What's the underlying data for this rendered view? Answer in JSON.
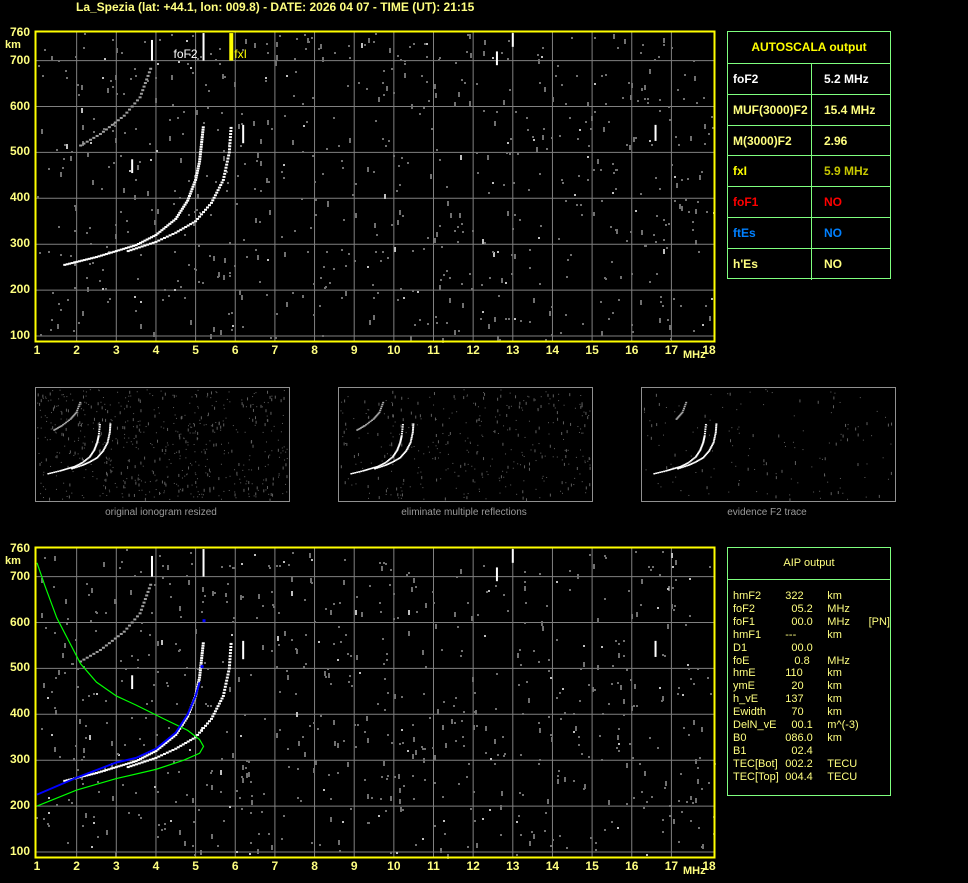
{
  "title": "La_Spezia (lat: +44.1, lon: 009.8) - DATE: 2026 04 07 - TIME (UT): 21:15",
  "colors": {
    "axis": "#ffff00",
    "grid": "#808080",
    "label": "#ffff80",
    "table_border": "#7fff7f",
    "foF1": "#ff0000",
    "ftEs": "#0080ff",
    "profile": "#00ff00",
    "trace_fit": "#0000ff"
  },
  "chart_data": [
    {
      "type": "scatter",
      "name": "ionogram",
      "xlabel": "MHz",
      "ylabel": "km",
      "xlim": [
        1,
        18
      ],
      "ylim": [
        100,
        760
      ],
      "x_ticks": [
        "1",
        "2",
        "3",
        "4",
        "5",
        "6",
        "7",
        "8",
        "9",
        "10",
        "11",
        "12",
        "13",
        "14",
        "15",
        "16",
        "17",
        "18"
      ],
      "y_ticks": [
        "760",
        "700",
        "600",
        "500",
        "400",
        "300",
        "200",
        "100"
      ],
      "grid": true,
      "annotations": [
        {
          "label": "foF2",
          "x": 5.2
        },
        {
          "label": "fxI",
          "x": 5.9
        }
      ],
      "traces": {
        "o_trace": [
          [
            1.7,
            255
          ],
          [
            2.5,
            272
          ],
          [
            3.0,
            285
          ],
          [
            3.5,
            298
          ],
          [
            4.0,
            320
          ],
          [
            4.5,
            355
          ],
          [
            4.8,
            395
          ],
          [
            5.0,
            440
          ],
          [
            5.1,
            480
          ],
          [
            5.2,
            560
          ]
        ],
        "x_trace": [
          [
            3.3,
            285
          ],
          [
            4.0,
            305
          ],
          [
            4.5,
            325
          ],
          [
            5.0,
            350
          ],
          [
            5.4,
            390
          ],
          [
            5.7,
            440
          ],
          [
            5.85,
            500
          ],
          [
            5.9,
            560
          ]
        ],
        "second_hop": [
          [
            2.1,
            515
          ],
          [
            2.6,
            540
          ],
          [
            3.2,
            580
          ],
          [
            3.6,
            620
          ],
          [
            3.9,
            690
          ]
        ]
      }
    },
    {
      "type": "line",
      "name": "aip",
      "xlabel": "MHz",
      "ylabel": "km",
      "xlim": [
        1,
        18
      ],
      "ylim": [
        100,
        760
      ],
      "x_ticks": [
        "1",
        "2",
        "3",
        "4",
        "5",
        "6",
        "7",
        "8",
        "9",
        "10",
        "11",
        "12",
        "13",
        "14",
        "15",
        "16",
        "17",
        "18"
      ],
      "y_ticks": [
        "760",
        "700",
        "600",
        "500",
        "400",
        "300",
        "200",
        "100"
      ],
      "grid": true,
      "series": [
        {
          "color": "#00ff00",
          "points": [
            [
              1,
              200
            ],
            [
              2,
              235
            ],
            [
              3,
              260
            ],
            [
              4,
              280
            ],
            [
              4.7,
              300
            ],
            [
              5.1,
              315
            ],
            [
              5.2,
              330
            ],
            [
              5.1,
              345
            ],
            [
              4.8,
              365
            ],
            [
              4.2,
              390
            ],
            [
              3.5,
              420
            ],
            [
              3,
              440
            ],
            [
              2.5,
              470
            ],
            [
              2.1,
              510
            ],
            [
              1.8,
              560
            ],
            [
              1.5,
              610
            ],
            [
              1.2,
              680
            ],
            [
              1,
              730
            ]
          ]
        },
        {
          "color": "#0000ff",
          "points": [
            [
              1,
              225
            ],
            [
              2,
              262
            ],
            [
              3,
              295
            ],
            [
              3.5,
              305
            ],
            [
              4,
              325
            ],
            [
              4.5,
              360
            ],
            [
              4.8,
              400
            ],
            [
              5.0,
              440
            ],
            [
              5.1,
              470
            ]
          ]
        }
      ]
    }
  ],
  "axis": {
    "y_unit": "km",
    "x_unit": "MHz"
  },
  "thumbnails": [
    {
      "caption": "original ionogram resized"
    },
    {
      "caption": "eliminate multiple reflections"
    },
    {
      "caption": "evidence F2 trace"
    }
  ],
  "autoscala": {
    "title": "AUTOSCALA output",
    "rows": [
      {
        "key": "foF2",
        "value": "5.2 MHz",
        "key_color": "#ffffff",
        "value_color": "#ffffff"
      },
      {
        "key": "MUF(3000)F2",
        "value": "15.4 MHz",
        "key_color": "#ffff80",
        "value_color": "#ffff80"
      },
      {
        "key": "M(3000)F2",
        "value": "2.96",
        "key_color": "#ffff80",
        "value_color": "#ffff80"
      },
      {
        "key": "fxI",
        "value": "5.9 MHz",
        "key_color": "#ffff00",
        "value_color": "#c8c800"
      },
      {
        "key": "foF1",
        "value": "NO",
        "key_color": "#ff0000",
        "value_color": "#ff0000"
      },
      {
        "key": "ftEs",
        "value": "NO",
        "key_color": "#0080ff",
        "value_color": "#0080ff"
      },
      {
        "key": "h'Es",
        "value": "NO",
        "key_color": "#ffff80",
        "value_color": "#ffff80"
      }
    ]
  },
  "aip": {
    "title": "AIP output",
    "rows": [
      {
        "key": "hmF2",
        "value": "322",
        "unit": "km",
        "extra": ""
      },
      {
        "key": "foF2",
        "value": "  05.2",
        "unit": "MHz",
        "extra": ""
      },
      {
        "key": "foF1",
        "value": "  00.0",
        "unit": "MHz",
        "extra": "[PN]"
      },
      {
        "key": "hmF1",
        "value": "---",
        "unit": "km",
        "extra": ""
      },
      {
        "key": "D1",
        "value": "  00.0",
        "unit": "",
        "extra": ""
      },
      {
        "key": "foE",
        "value": "   0.8",
        "unit": "MHz",
        "extra": ""
      },
      {
        "key": "hmE",
        "value": "110",
        "unit": "km",
        "extra": ""
      },
      {
        "key": "ymE",
        "value": "  20",
        "unit": "km",
        "extra": ""
      },
      {
        "key": "h_vE",
        "value": "137",
        "unit": "km",
        "extra": ""
      },
      {
        "key": "Ewidth",
        "value": "  70",
        "unit": "km",
        "extra": ""
      },
      {
        "key": "DelN_vE",
        "value": "  00.1",
        "unit": "m^(-3)",
        "extra": ""
      },
      {
        "key": "B0",
        "value": "086.0",
        "unit": "km",
        "extra": ""
      },
      {
        "key": "B1",
        "value": "  02.4",
        "unit": "",
        "extra": ""
      },
      {
        "key": "TEC[Bot]",
        "value": "002.2",
        "unit": "TECU",
        "extra": ""
      },
      {
        "key": "TEC[Top]",
        "value": "004.4",
        "unit": "TECU",
        "extra": ""
      }
    ]
  }
}
